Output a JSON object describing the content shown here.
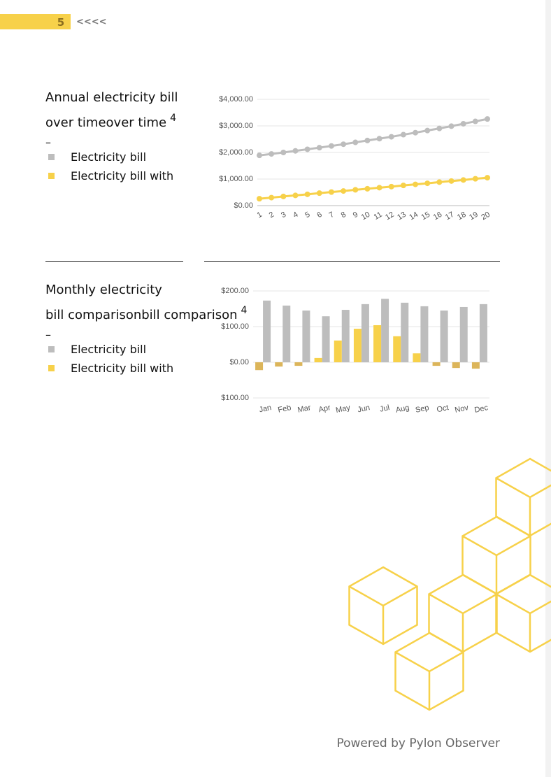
{
  "header": {
    "page_number": "5",
    "nav": "<<<<"
  },
  "chart_data": [
    {
      "type": "line",
      "title": [
        "Annual electricity bill",
        "over time"
      ],
      "title_note": "4",
      "subtitle": "–",
      "x": [
        1,
        2,
        3,
        4,
        5,
        6,
        7,
        8,
        9,
        10,
        11,
        12,
        13,
        14,
        15,
        16,
        17,
        18,
        19,
        20
      ],
      "xlim": [
        1,
        20
      ],
      "series": [
        {
          "name": "Electricity bill",
          "color": "#bdbdbd",
          "values": [
            1890,
            1945,
            2000,
            2060,
            2120,
            2180,
            2245,
            2310,
            2380,
            2450,
            2520,
            2590,
            2670,
            2745,
            2825,
            2905,
            2990,
            3080,
            3170,
            3260
          ]
        },
        {
          "name": "Electricity bill with",
          "color": "#f7d14a",
          "values": [
            260,
            300,
            345,
            385,
            425,
            470,
            510,
            550,
            595,
            635,
            675,
            715,
            760,
            800,
            840,
            885,
            925,
            965,
            1010,
            1050
          ]
        }
      ],
      "ylim": [
        0,
        4000
      ],
      "yticks": [
        {
          "value": 0,
          "label": "$0.00"
        },
        {
          "value": 1000,
          "label": "$1,000.00"
        },
        {
          "value": 2000,
          "label": "$2,000.00"
        },
        {
          "value": 3000,
          "label": "$3,000.00"
        },
        {
          "value": 4000,
          "label": "$4,000.00"
        }
      ],
      "grid": true
    },
    {
      "type": "bar",
      "title": [
        "Monthly electricity",
        "bill comparison"
      ],
      "title_note": "4",
      "subtitle": "–",
      "categories": [
        "Jan",
        "Feb",
        "Mar",
        "Apr",
        "May",
        "Jun",
        "Jul",
        "Aug",
        "Sep",
        "Oct",
        "Nov",
        "Dec"
      ],
      "series": [
        {
          "name": "Electricity bill",
          "color": "#bdbdbd",
          "values": [
            173,
            159,
            145,
            129,
            147,
            163,
            178,
            167,
            157,
            145,
            155,
            163
          ]
        },
        {
          "name": "Electricity bill with",
          "color": "#f7d14a",
          "negative_color": "#dcb55a",
          "values": [
            -22,
            -12,
            -10,
            12,
            61,
            94,
            104,
            73,
            25,
            -10,
            -16,
            -18
          ]
        }
      ],
      "ylim": [
        -100,
        200
      ],
      "yticks": [
        {
          "value": -100,
          "label": "$100.00"
        },
        {
          "value": 0,
          "label": "$0.00"
        },
        {
          "value": 100,
          "label": "$100.00"
        },
        {
          "value": 200,
          "label": "$200.00"
        }
      ],
      "grid": true
    }
  ],
  "footer": "Powered by Pylon Observer"
}
